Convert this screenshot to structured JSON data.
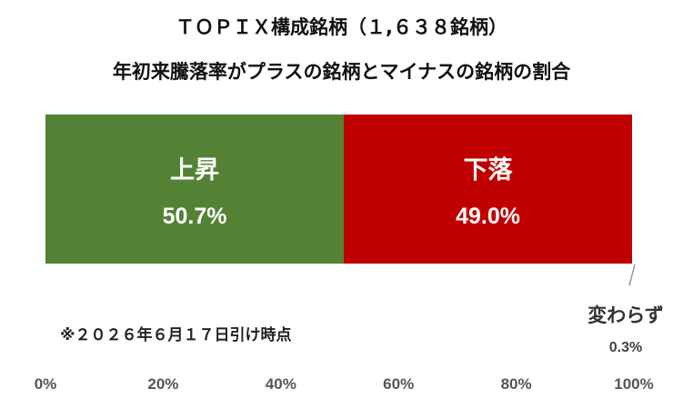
{
  "titles": {
    "line1": "ＴＯＰＩＸ構成銘柄（１,６３８銘柄）",
    "line2": "年初来騰落率がプラスの銘柄とマイナスの銘柄の割合"
  },
  "note": "※２０２６年６月１７日引け時点",
  "chart_data": {
    "type": "bar",
    "orientation": "horizontal-stacked",
    "xlim": [
      0,
      100
    ],
    "x_ticks": [
      "0%",
      "20%",
      "40%",
      "60%",
      "80%",
      "100%"
    ],
    "grid": false,
    "legend": "none",
    "series": [
      {
        "name": "上昇",
        "value": 50.7,
        "label": "50.7%",
        "color": "#548235"
      },
      {
        "name": "下落",
        "value": 49.0,
        "label": "49.0%",
        "color": "#c00000"
      },
      {
        "name": "変わらず",
        "value": 0.3,
        "label": "0.3%",
        "color": "#ffffff"
      }
    ]
  }
}
